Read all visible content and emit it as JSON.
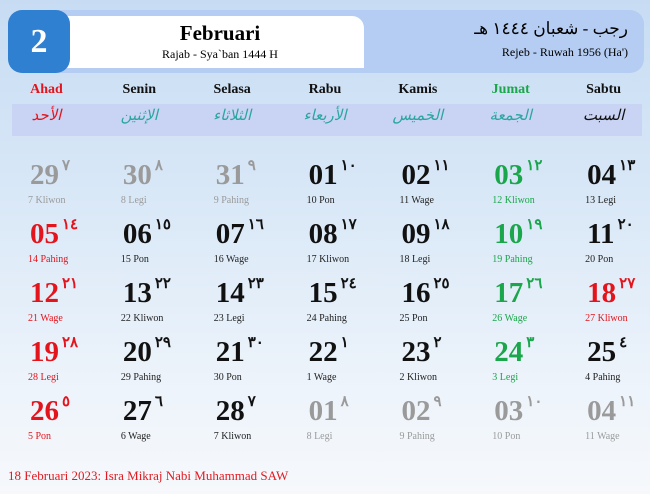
{
  "header": {
    "month_number": "2",
    "month_name": "Februari",
    "hijri_range": "Rajab - Sya`ban 1444 H",
    "arabic_range": "رجب - شعبان ١٤٤٤ هـ",
    "javanese_range": "Rejeb - Ruwah 1956 (Ha')"
  },
  "colors": {
    "red": "#e3141c",
    "green": "#1aa64a",
    "black": "#111111",
    "gray": "#9a9a9a",
    "teal": "#2aa6a0",
    "blue": "#2f80d0"
  },
  "weekdays": [
    {
      "name": "Ahad",
      "arabic": "الأحد",
      "color": "red"
    },
    {
      "name": "Senin",
      "arabic": "الإثنين",
      "color": "black",
      "arcolor": "teal"
    },
    {
      "name": "Selasa",
      "arabic": "الثلاثاء",
      "color": "black",
      "arcolor": "teal"
    },
    {
      "name": "Rabu",
      "arabic": "الأربعاء",
      "color": "black",
      "arcolor": "teal"
    },
    {
      "name": "Kamis",
      "arabic": "الخميس",
      "color": "black",
      "arcolor": "teal"
    },
    {
      "name": "Jumat",
      "arabic": "الجمعة",
      "color": "green",
      "arcolor": "teal"
    },
    {
      "name": "Sabtu",
      "arabic": "السبت",
      "color": "black",
      "arcolor": "black"
    }
  ],
  "weeks": [
    [
      {
        "d": "29",
        "h": "٧",
        "p": "7 Kliwon",
        "c": "gray"
      },
      {
        "d": "30",
        "h": "٨",
        "p": "8 Legi",
        "c": "gray"
      },
      {
        "d": "31",
        "h": "٩",
        "p": "9 Pahing",
        "c": "gray"
      },
      {
        "d": "01",
        "h": "١٠",
        "p": "10 Pon",
        "c": "black"
      },
      {
        "d": "02",
        "h": "١١",
        "p": "11 Wage",
        "c": "black"
      },
      {
        "d": "03",
        "h": "١٢",
        "p": "12 Kliwon",
        "c": "green"
      },
      {
        "d": "04",
        "h": "١٣",
        "p": "13 Legi",
        "c": "black"
      }
    ],
    [
      {
        "d": "05",
        "h": "١٤",
        "p": "14 Pahing",
        "c": "red"
      },
      {
        "d": "06",
        "h": "١٥",
        "p": "15 Pon",
        "c": "black"
      },
      {
        "d": "07",
        "h": "١٦",
        "p": "16 Wage",
        "c": "black"
      },
      {
        "d": "08",
        "h": "١٧",
        "p": "17 Kliwon",
        "c": "black"
      },
      {
        "d": "09",
        "h": "١٨",
        "p": "18 Legi",
        "c": "black"
      },
      {
        "d": "10",
        "h": "١٩",
        "p": "19 Pahing",
        "c": "green"
      },
      {
        "d": "11",
        "h": "٢٠",
        "p": "20 Pon",
        "c": "black"
      }
    ],
    [
      {
        "d": "12",
        "h": "٢١",
        "p": "21 Wage",
        "c": "red"
      },
      {
        "d": "13",
        "h": "٢٢",
        "p": "22 Kliwon",
        "c": "black"
      },
      {
        "d": "14",
        "h": "٢٣",
        "p": "23 Legi",
        "c": "black"
      },
      {
        "d": "15",
        "h": "٢٤",
        "p": "24 Pahing",
        "c": "black"
      },
      {
        "d": "16",
        "h": "٢٥",
        "p": "25 Pon",
        "c": "black"
      },
      {
        "d": "17",
        "h": "٢٦",
        "p": "26 Wage",
        "c": "green"
      },
      {
        "d": "18",
        "h": "٢٧",
        "p": "27 Kliwon",
        "c": "red"
      }
    ],
    [
      {
        "d": "19",
        "h": "٢٨",
        "p": "28 Legi",
        "c": "red"
      },
      {
        "d": "20",
        "h": "٢٩",
        "p": "29 Pahing",
        "c": "black"
      },
      {
        "d": "21",
        "h": "٣٠",
        "p": "30 Pon",
        "c": "black"
      },
      {
        "d": "22",
        "h": "١",
        "p": "1 Wage",
        "c": "black"
      },
      {
        "d": "23",
        "h": "٢",
        "p": "2 Kliwon",
        "c": "black"
      },
      {
        "d": "24",
        "h": "٣",
        "p": "3 Legi",
        "c": "green"
      },
      {
        "d": "25",
        "h": "٤",
        "p": "4 Pahing",
        "c": "black"
      }
    ],
    [
      {
        "d": "26",
        "h": "٥",
        "p": "5 Pon",
        "c": "red"
      },
      {
        "d": "27",
        "h": "٦",
        "p": "6 Wage",
        "c": "black"
      },
      {
        "d": "28",
        "h": "٧",
        "p": "7 Kliwon",
        "c": "black"
      },
      {
        "d": "01",
        "h": "٨",
        "p": "8 Legi",
        "c": "gray"
      },
      {
        "d": "02",
        "h": "٩",
        "p": "9 Pahing",
        "c": "gray"
      },
      {
        "d": "03",
        "h": "١٠",
        "p": "10 Pon",
        "c": "gray"
      },
      {
        "d": "04",
        "h": "١١",
        "p": "11 Wage",
        "c": "gray"
      }
    ]
  ],
  "footer": {
    "holiday": "18 Februari 2023: Isra Mikraj Nabi Muhammad SAW"
  }
}
